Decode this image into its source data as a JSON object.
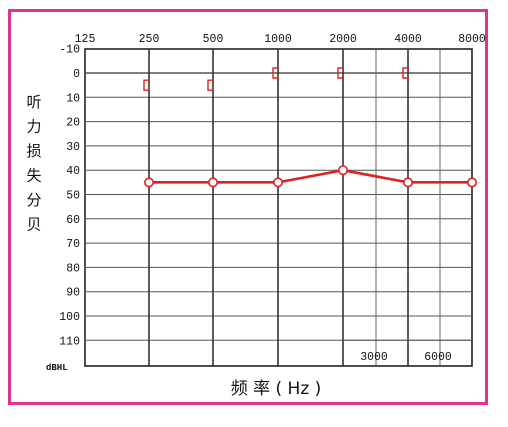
{
  "chart_data": {
    "type": "line",
    "frequency_ticks": [
      "125",
      "250",
      "500",
      "1000",
      "2000",
      "4000",
      "8000"
    ],
    "intermediate_ticks": [
      "3000",
      "6000"
    ],
    "y_ticks": [
      "-10",
      "0",
      "10",
      "20",
      "30",
      "40",
      "50",
      "60",
      "70",
      "80",
      "90",
      "100",
      "110"
    ],
    "ylim": [
      -10,
      120
    ],
    "y_unit": "dBHL",
    "ylabel_chars": [
      "听",
      "力",
      "损",
      "失",
      "分",
      "贝"
    ],
    "xlabel": "频 率 ( Hz )",
    "grid": true,
    "series": [
      {
        "type": "line",
        "marker": "circle",
        "color": "#dd2222",
        "x": [
          "250",
          "500",
          "1000",
          "2000",
          "4000",
          "8000"
        ],
        "values": [
          45,
          45,
          45,
          40,
          45,
          45
        ]
      },
      {
        "type": "points",
        "marker": "bracket",
        "color": "#dd2222",
        "x": [
          "250",
          "500",
          "1000",
          "2000",
          "4000"
        ],
        "values": [
          5,
          5,
          0,
          0,
          0
        ]
      }
    ],
    "colors": {
      "frame": "#e0338b",
      "data": "#dd2222",
      "grid": "#444444"
    }
  }
}
